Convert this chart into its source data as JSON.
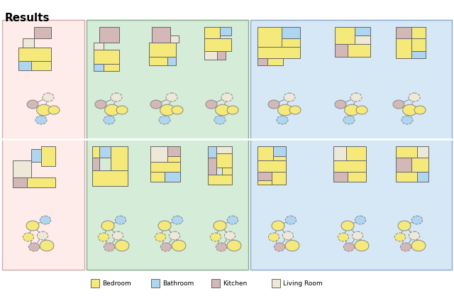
{
  "title": "Results",
  "title_fontsize": 11,
  "title_fontweight": "bold",
  "colors": {
    "bedroom": "#F5E97A",
    "bathroom": "#AED6F1",
    "kitchen": "#D4B8B8",
    "living_room": "#EDE8D8",
    "pink_bg": "#FDECEA",
    "green_bg": "#D5ECD8",
    "blue_bg": "#D6E8F5",
    "edge": "#888888",
    "room_border": "#666666",
    "pink_border": "#D4AAAA",
    "green_border": "#88AA88",
    "blue_border": "#88AACC"
  },
  "legend": [
    "Bedroom",
    "Bathroom",
    "Kitchen",
    "Living Room"
  ],
  "figsize": [
    6.4,
    4.24
  ],
  "dpi": 100
}
